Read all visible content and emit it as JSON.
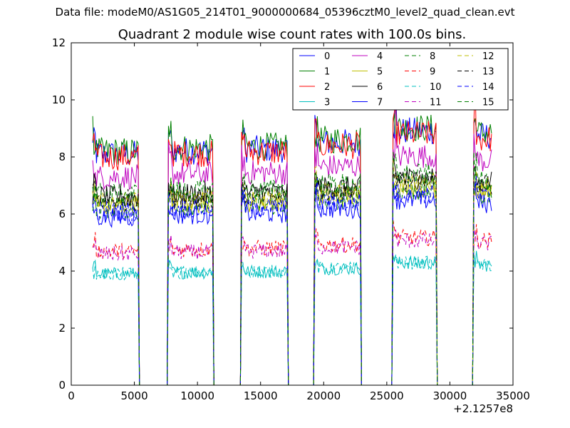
{
  "suptitle": "Data file: modeM0/AS1G05_214T01_9000000684_05396cztM0_level2_quad_clean.evt",
  "chart_data": {
    "type": "line",
    "title": "Quadrant 2 module wise count rates with 100.0s bins.",
    "xlabel": "",
    "ylabel": "",
    "xlim": [
      0,
      35000
    ],
    "ylim": [
      0,
      12
    ],
    "x_offset_label": "+2.1257e8",
    "xticks": [
      0,
      5000,
      10000,
      15000,
      20000,
      25000,
      30000,
      35000
    ],
    "xtick_labels": [
      "0",
      "5000",
      "10000",
      "15000",
      "20000",
      "25000",
      "30000",
      "35000"
    ],
    "yticks": [
      0,
      2,
      4,
      6,
      8,
      10,
      12
    ],
    "ytick_labels": [
      "0",
      "2",
      "4",
      "6",
      "8",
      "10",
      "12"
    ],
    "grid": false,
    "legend_position": "top-right",
    "bin_size": 100,
    "segments": [
      [
        1700,
        5300
      ],
      [
        7700,
        11200
      ],
      [
        13500,
        17100
      ],
      [
        19300,
        22900
      ],
      [
        25500,
        28900
      ],
      [
        31900,
        33300
      ]
    ],
    "series": [
      {
        "name": "0",
        "color": "#0000ff",
        "dash": "solid",
        "level": 8.1
      },
      {
        "name": "1",
        "color": "#008000",
        "dash": "solid",
        "level": 8.2
      },
      {
        "name": "2",
        "color": "#ff0000",
        "dash": "solid",
        "level": 8.0
      },
      {
        "name": "3",
        "color": "#00bfbf",
        "dash": "solid",
        "level": 3.9
      },
      {
        "name": "4",
        "color": "#bf00bf",
        "dash": "solid",
        "level": 7.3
      },
      {
        "name": "5",
        "color": "#bfbf00",
        "dash": "solid",
        "level": 6.3
      },
      {
        "name": "6",
        "color": "#000000",
        "dash": "solid",
        "level": 6.6
      },
      {
        "name": "7",
        "color": "#0000ff",
        "dash": "solid",
        "level": 5.9
      },
      {
        "name": "8",
        "color": "#008000",
        "dash": "dashed",
        "level": 6.2
      },
      {
        "name": "9",
        "color": "#ff0000",
        "dash": "dashed",
        "level": 4.7
      },
      {
        "name": "10",
        "color": "#00bfbf",
        "dash": "dashed",
        "level": 3.9
      },
      {
        "name": "11",
        "color": "#bf00bf",
        "dash": "dashed",
        "level": 4.6
      },
      {
        "name": "12",
        "color": "#bfbf00",
        "dash": "dashed",
        "level": 6.4
      },
      {
        "name": "13",
        "color": "#000000",
        "dash": "dashed",
        "level": 6.5
      },
      {
        "name": "14",
        "color": "#0000ff",
        "dash": "dashed",
        "level": 6.1
      },
      {
        "name": "15",
        "color": "#008000",
        "dash": "dashed",
        "level": 6.7
      }
    ],
    "annotations": [
      {
        "x": 25700,
        "y": 10.6,
        "series": "0"
      },
      {
        "x": 32000,
        "y": 10.6,
        "series": "2"
      }
    ]
  }
}
